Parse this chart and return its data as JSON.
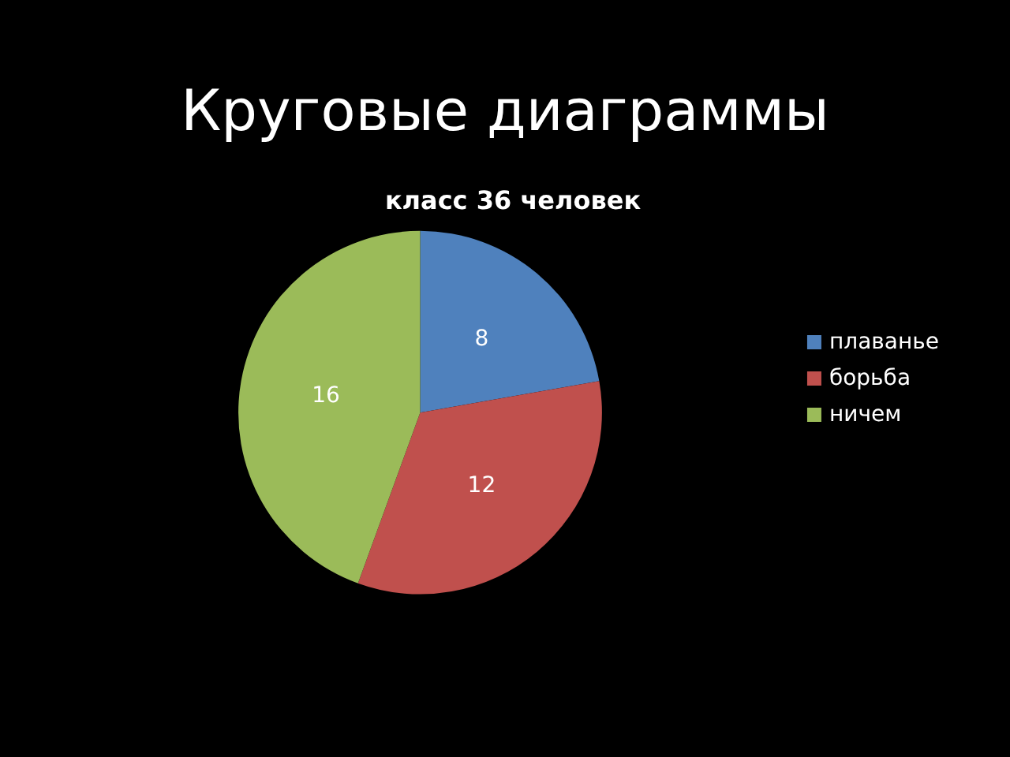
{
  "chart_data": {
    "type": "pie",
    "title": "Круговые диаграммы",
    "subtitle": "класс 36 человек",
    "categories": [
      "плаванье",
      "борьба",
      "ничем"
    ],
    "values": [
      8,
      12,
      16
    ],
    "colors": [
      "#4f81bd",
      "#c0504d",
      "#9bbb59"
    ],
    "data_labels": true,
    "legend": "right"
  }
}
